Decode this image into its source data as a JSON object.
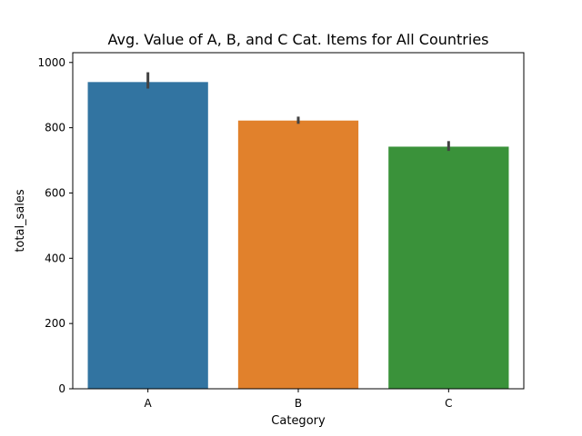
{
  "chart_data": {
    "type": "bar",
    "title": "Avg. Value of A, B, and C Cat. Items for All Countries",
    "xlabel": "Category",
    "ylabel": "total_sales",
    "categories": [
      "A",
      "B",
      "C"
    ],
    "values": [
      940,
      822,
      742
    ],
    "error_bars": [
      [
        920,
        970
      ],
      [
        812,
        834
      ],
      [
        729,
        759
      ]
    ],
    "colors": [
      "#3274a1",
      "#e1812c",
      "#3a923a"
    ],
    "error_color": "#424242",
    "ylim": [
      0,
      1030
    ],
    "yticks": [
      0,
      200,
      400,
      600,
      800,
      1000
    ],
    "grid": false,
    "legend": "none"
  }
}
